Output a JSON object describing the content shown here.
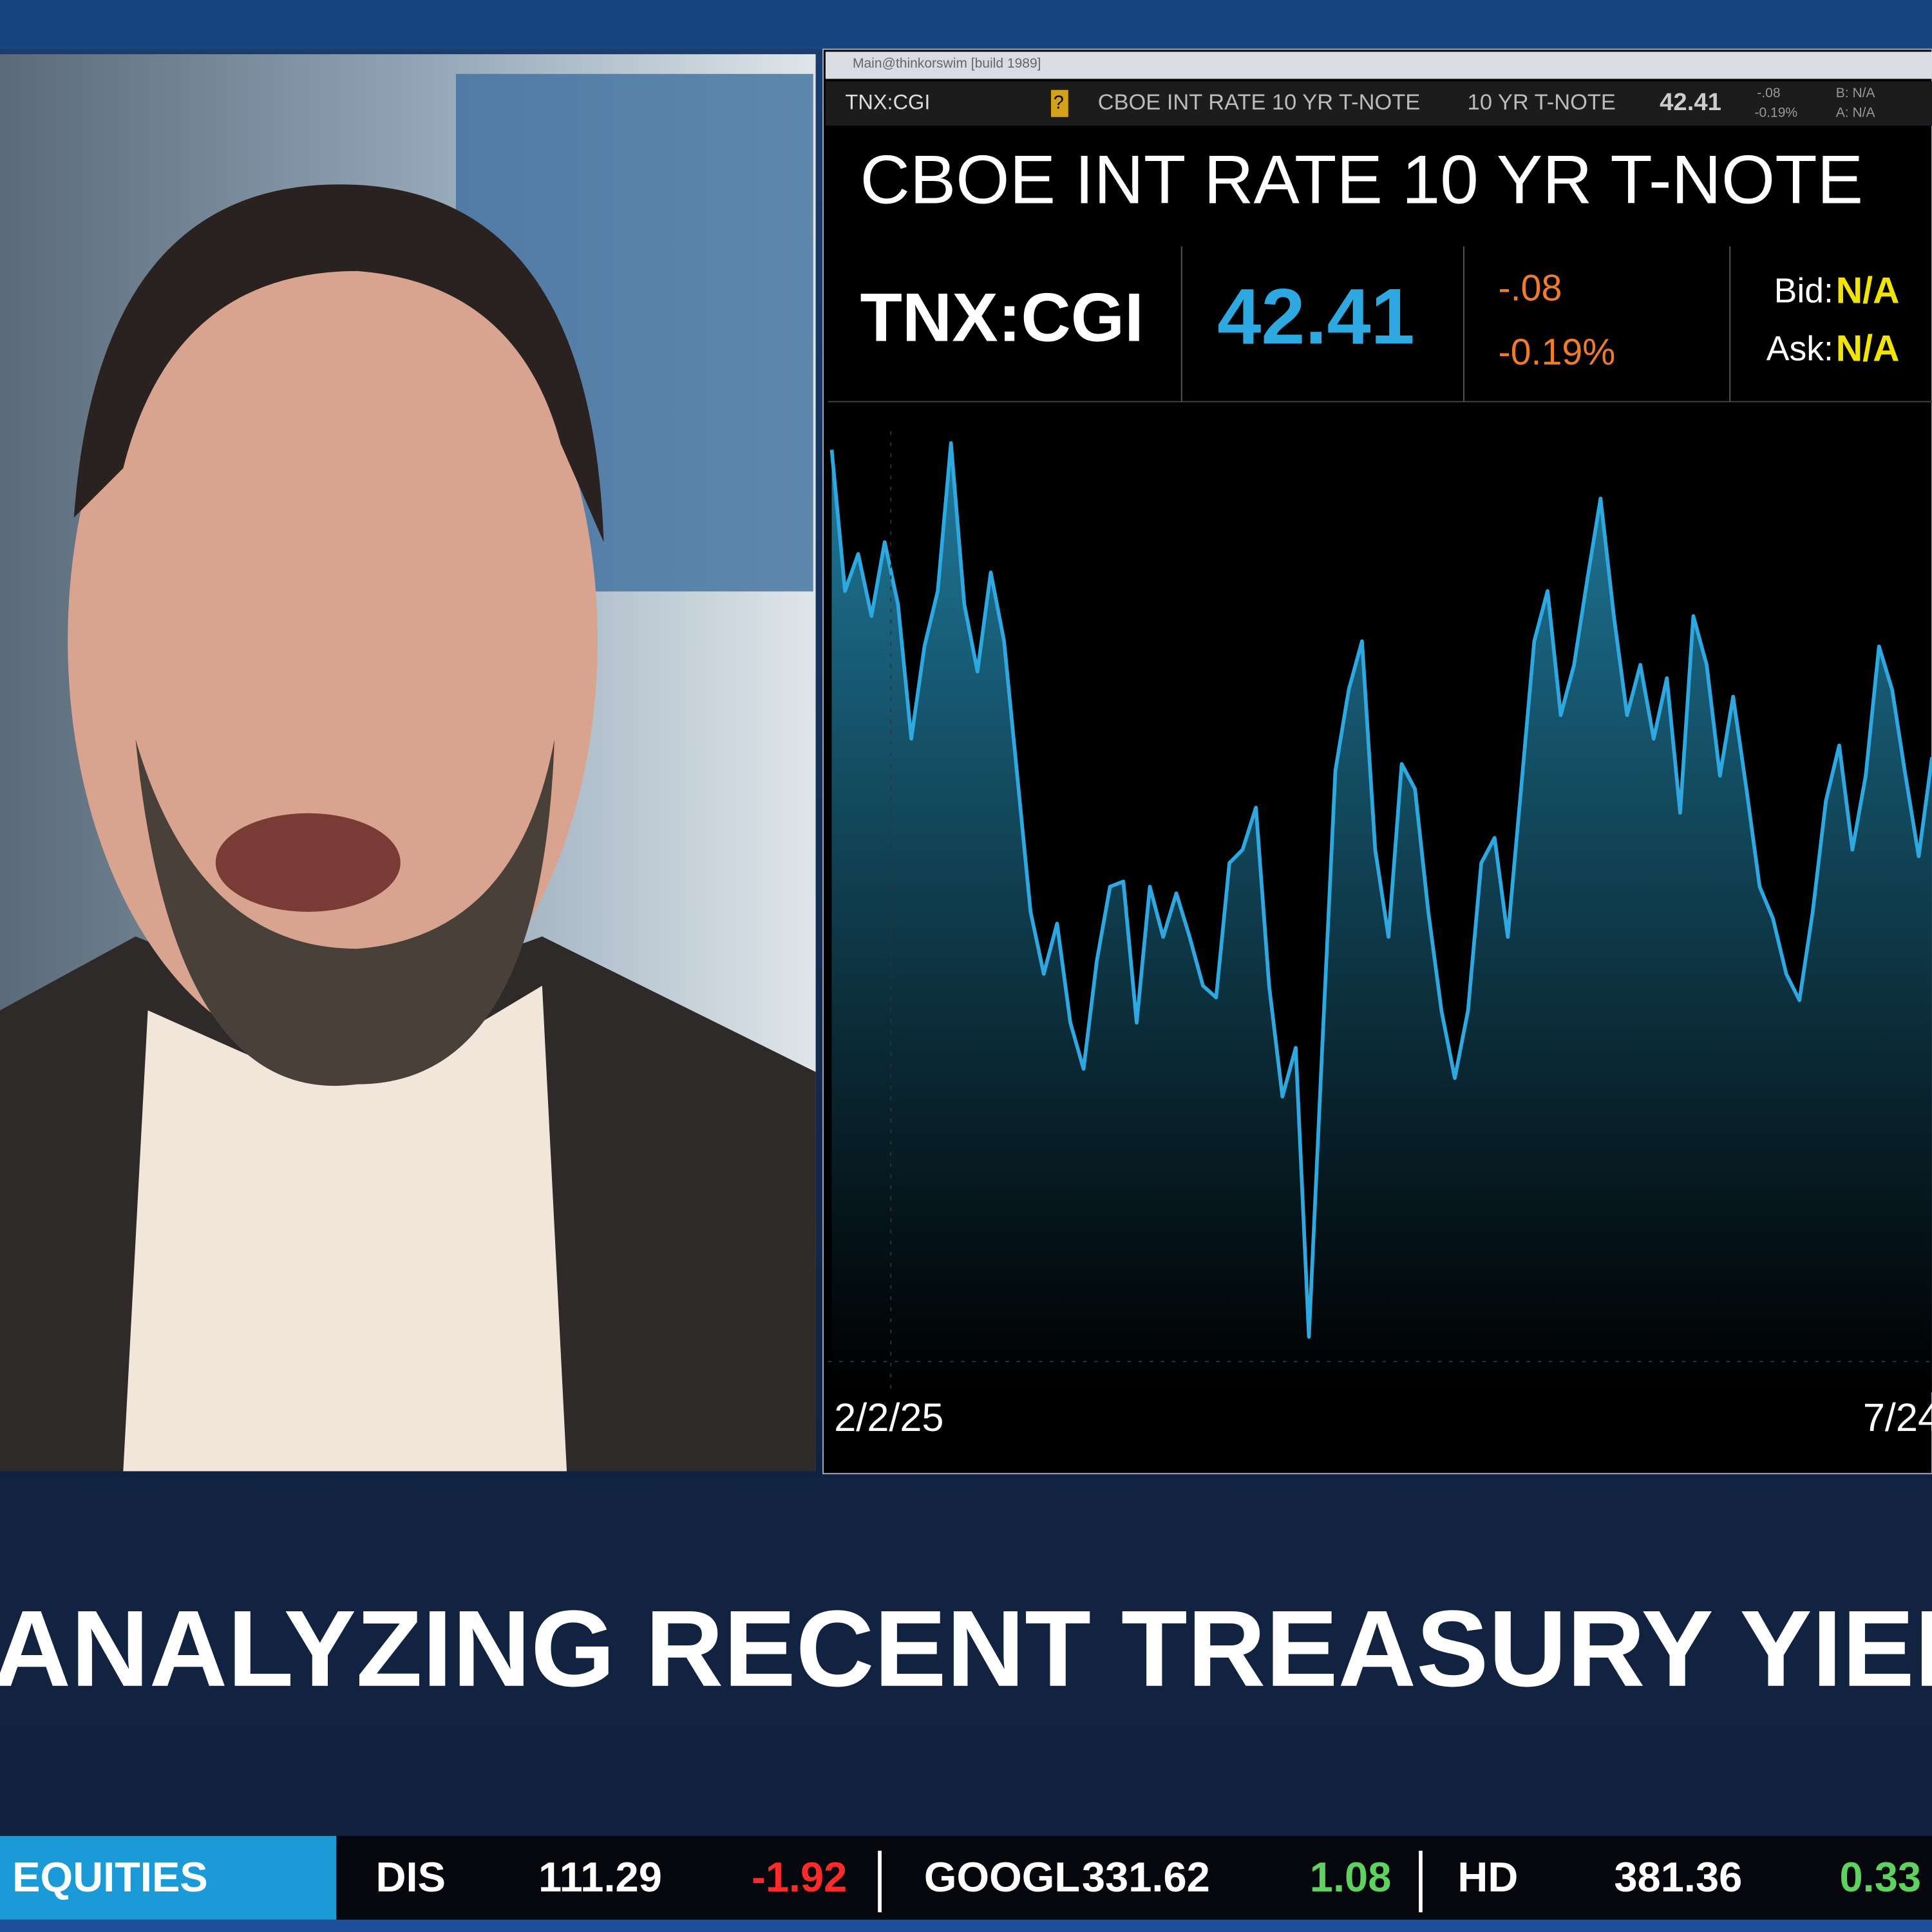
{
  "window_title": "Main@thinkorswim [build 1989]",
  "toolbar": {
    "symbol": "TNX:CGI",
    "flag": "?",
    "name": "CBOE INT RATE 10 YR T-NOTE",
    "short_name": "10 YR T-NOTE",
    "last": "42.41",
    "change": "-.08",
    "percent": "-0.19%",
    "bid": "B: N/A",
    "ask": "A: N/A"
  },
  "quote": {
    "title": "CBOE INT RATE 10 YR T-NOTE",
    "symbol": "TNX:CGI",
    "last": "42.41",
    "change": "-.08",
    "percent": "-0.19%",
    "bid_label": "Bid:",
    "bid": "N/A",
    "ask_label": "Ask:",
    "ask": "N/A"
  },
  "chart_data": {
    "type": "area",
    "color": "#2ea8e0",
    "ylim": [
      39.5,
      46.5
    ],
    "x_labels": [
      "2/2/25",
      "7/24"
    ],
    "values": [
      46.36,
      45.29,
      45.57,
      45.1,
      45.66,
      45.19,
      44.17,
      44.87,
      45.29,
      46.41,
      45.19,
      44.68,
      45.43,
      44.91,
      43.89,
      42.86,
      42.39,
      42.77,
      42.02,
      41.67,
      42.49,
      43.05,
      43.09,
      42.02,
      43.05,
      42.67,
      43.0,
      42.67,
      42.3,
      42.21,
      43.23,
      43.33,
      43.65,
      42.3,
      41.46,
      41.83,
      39.64,
      41.83,
      43.93,
      44.54,
      44.91,
      43.33,
      42.67,
      43.98,
      43.79,
      42.86,
      42.11,
      41.6,
      42.11,
      43.23,
      43.42,
      42.67,
      43.79,
      44.91,
      45.29,
      44.35,
      44.73,
      45.38,
      45.99,
      45.1,
      44.35,
      44.73,
      44.17,
      44.63,
      43.61,
      45.1,
      44.73,
      43.89,
      44.49,
      43.79,
      43.05,
      42.81,
      42.39,
      42.19,
      42.86,
      43.7,
      44.12,
      43.33,
      43.89,
      44.87,
      44.54,
      43.89,
      43.28,
      44.03
    ]
  },
  "headline": "ANALYZING RECENT TREASURY YIELD M",
  "ticker": {
    "label": "EQUITIES",
    "items": [
      {
        "symbol": "DIS",
        "price": "111.29",
        "change": "-1.92"
      },
      {
        "symbol": "GOOGL",
        "price": "331.62",
        "change": "1.08"
      },
      {
        "symbol": "HD",
        "price": "381.36",
        "change": "0.33"
      }
    ]
  }
}
